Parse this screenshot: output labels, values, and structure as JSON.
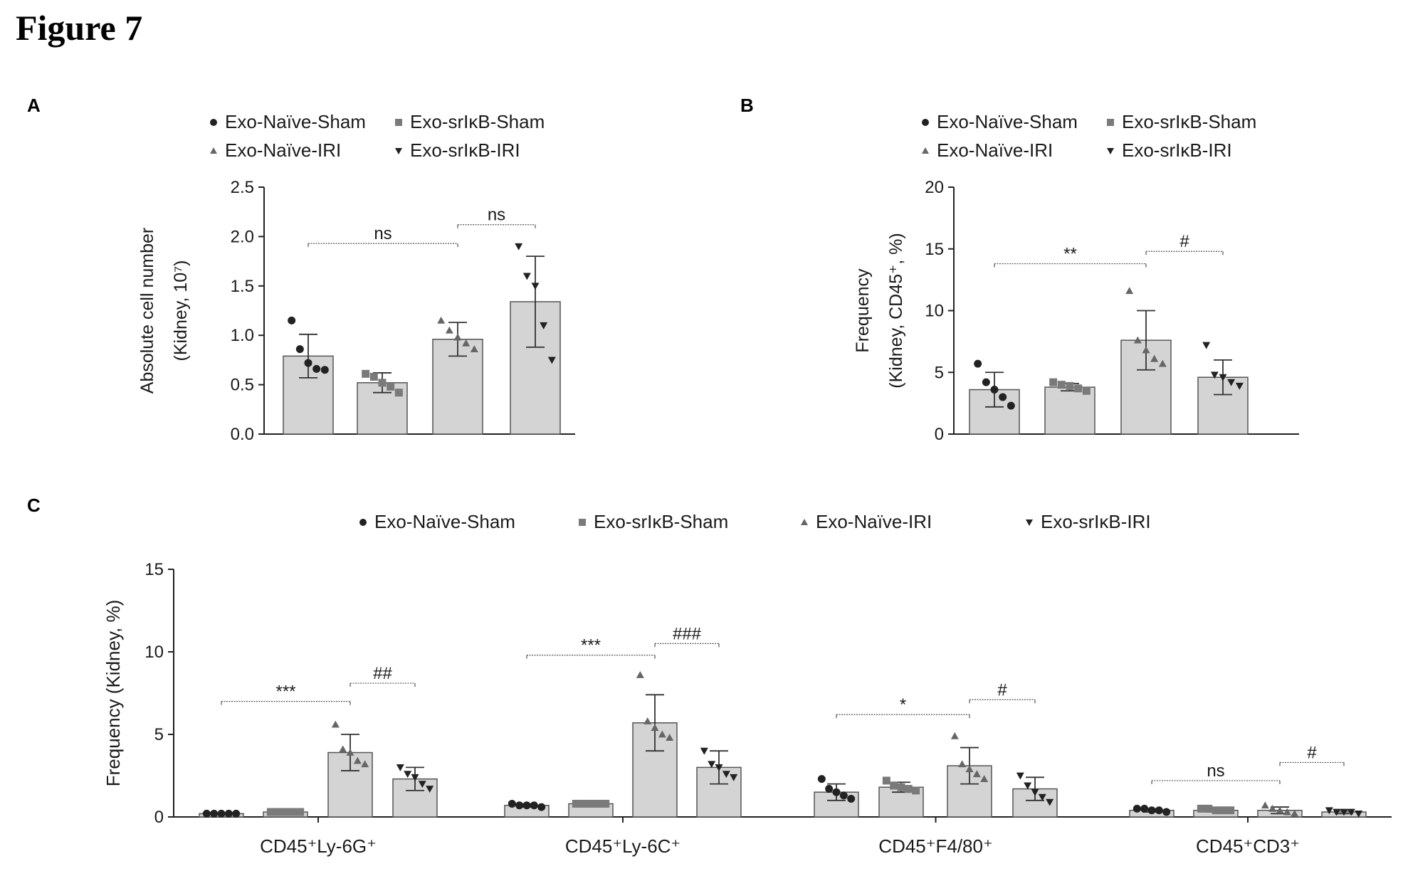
{
  "figure": {
    "title": "Figure 7"
  },
  "colors": {
    "bar_fill": "#d4d4d4",
    "bar_stroke": "#555555",
    "marker": "#222222",
    "sig_line": "#555555",
    "axis": "#222222"
  },
  "chart_data": [
    {
      "panel": "A",
      "type": "bar",
      "ylabel": "Absolute cell number",
      "ylabel2": "(Kidney, 10⁷)",
      "ylim": [
        0,
        2.5
      ],
      "yticks": [
        "0.0",
        "0.5",
        "1.0",
        "1.5",
        "2.0",
        "2.5"
      ],
      "legend": [
        "Exo-Naïve-Sham",
        "Exo-srIκB-Sham",
        "Exo-Naïve-IRI",
        "Exo-srIκB-IRI"
      ],
      "categories": [
        ""
      ],
      "series": [
        {
          "name": "Exo-Naïve-Sham",
          "marker": "circle",
          "values": [
            0.79
          ],
          "errors": [
            0.22
          ],
          "points": [
            [
              1.15,
              0.86,
              0.72,
              0.66,
              0.65
            ]
          ]
        },
        {
          "name": "Exo-srIκB-Sham",
          "marker": "square",
          "values": [
            0.52
          ],
          "errors": [
            0.1
          ],
          "points": [
            [
              0.61,
              0.58,
              0.52,
              0.48,
              0.42
            ]
          ]
        },
        {
          "name": "Exo-Naïve-IRI",
          "marker": "triangle-up",
          "values": [
            0.96
          ],
          "errors": [
            0.17
          ],
          "points": [
            [
              1.15,
              1.05,
              0.98,
              0.92,
              0.86
            ]
          ]
        },
        {
          "name": "Exo-srIκB-IRI",
          "marker": "triangle-down",
          "values": [
            1.34
          ],
          "errors": [
            0.46
          ],
          "points": [
            [
              1.9,
              1.6,
              1.5,
              1.1,
              0.75
            ]
          ]
        }
      ],
      "annotations": [
        {
          "text": "ns",
          "from": 0,
          "to": 2,
          "y": 1.93
        },
        {
          "text": "ns",
          "from": 2,
          "to": 3,
          "y": 2.12
        }
      ]
    },
    {
      "panel": "B",
      "type": "bar",
      "ylabel": "Frequency",
      "ylabel2": "(Kidney, CD45⁺, %)",
      "ylim": [
        0,
        20
      ],
      "yticks": [
        "0",
        "5",
        "10",
        "15",
        "20"
      ],
      "legend": [
        "Exo-Naïve-Sham",
        "Exo-srIκB-Sham",
        "Exo-Naïve-IRI",
        "Exo-srIκB-IRI"
      ],
      "categories": [
        ""
      ],
      "series": [
        {
          "name": "Exo-Naïve-Sham",
          "marker": "circle",
          "values": [
            3.6
          ],
          "errors": [
            1.4
          ],
          "points": [
            [
              5.7,
              4.2,
              3.6,
              3.0,
              2.3
            ]
          ]
        },
        {
          "name": "Exo-srIκB-Sham",
          "marker": "square",
          "values": [
            3.8
          ],
          "errors": [
            0.3
          ],
          "points": [
            [
              4.2,
              4.0,
              3.9,
              3.7,
              3.5
            ]
          ]
        },
        {
          "name": "Exo-Naïve-IRI",
          "marker": "triangle-up",
          "values": [
            7.6
          ],
          "errors": [
            2.4
          ],
          "points": [
            [
              11.6,
              7.6,
              6.8,
              6.1,
              5.7
            ]
          ]
        },
        {
          "name": "Exo-srIκB-IRI",
          "marker": "triangle-down",
          "values": [
            4.6
          ],
          "errors": [
            1.4
          ],
          "points": [
            [
              7.2,
              4.8,
              4.6,
              4.2,
              3.9
            ]
          ]
        }
      ],
      "annotations": [
        {
          "text": "**",
          "from": 0,
          "to": 2,
          "y": 13.8
        },
        {
          "text": "#",
          "from": 2,
          "to": 3,
          "y": 14.8
        }
      ]
    },
    {
      "panel": "C",
      "type": "bar",
      "ylabel": "Frequency (Kidney, %)",
      "ylim": [
        0,
        15
      ],
      "yticks": [
        "0",
        "5",
        "10",
        "15"
      ],
      "legend": [
        "Exo-Naïve-Sham",
        "Exo-srIκB-Sham",
        "Exo-Naïve-IRI",
        "Exo-srIκB-IRI"
      ],
      "categories": [
        "CD45⁺Ly-6G⁺",
        "CD45⁺Ly-6C⁺",
        "CD45⁺F4/80⁺",
        "CD45⁺CD3⁺"
      ],
      "series": [
        {
          "name": "Exo-Naïve-Sham",
          "marker": "circle",
          "values": [
            0.2,
            0.7,
            1.5,
            0.4
          ],
          "errors": [
            0.05,
            0.1,
            0.5,
            0.1
          ],
          "points": [
            [
              0.2,
              0.2,
              0.2,
              0.2,
              0.2
            ],
            [
              0.8,
              0.7,
              0.7,
              0.7,
              0.6
            ],
            [
              2.3,
              1.7,
              1.5,
              1.3,
              1.1
            ],
            [
              0.5,
              0.5,
              0.4,
              0.4,
              0.3
            ]
          ]
        },
        {
          "name": "Exo-srIκB-Sham",
          "marker": "square",
          "values": [
            0.3,
            0.8,
            1.8,
            0.4
          ],
          "errors": [
            0.05,
            0.1,
            0.3,
            0.1
          ],
          "points": [
            [
              0.3,
              0.3,
              0.3,
              0.3,
              0.3
            ],
            [
              0.8,
              0.8,
              0.8,
              0.8,
              0.8
            ],
            [
              2.2,
              1.9,
              1.8,
              1.7,
              1.6
            ],
            [
              0.5,
              0.5,
              0.4,
              0.4,
              0.4
            ]
          ]
        },
        {
          "name": "Exo-Naïve-IRI",
          "marker": "triangle-up",
          "values": [
            3.9,
            5.7,
            3.1,
            0.4
          ],
          "errors": [
            1.1,
            1.7,
            1.1,
            0.2
          ],
          "points": [
            [
              5.6,
              4.1,
              3.9,
              3.4,
              3.2
            ],
            [
              8.6,
              5.8,
              5.4,
              5.0,
              4.8
            ],
            [
              4.9,
              3.2,
              2.9,
              2.6,
              2.3
            ],
            [
              0.7,
              0.5,
              0.4,
              0.3,
              0.2
            ]
          ]
        },
        {
          "name": "Exo-srIκB-IRI",
          "marker": "triangle-down",
          "values": [
            2.3,
            3.0,
            1.7,
            0.3
          ],
          "errors": [
            0.7,
            1.0,
            0.7,
            0.1
          ],
          "points": [
            [
              3.0,
              2.6,
              2.4,
              2.0,
              1.7
            ],
            [
              4.0,
              3.2,
              3.0,
              2.6,
              2.4
            ],
            [
              2.5,
              1.9,
              1.5,
              1.2,
              0.9
            ],
            [
              0.4,
              0.3,
              0.3,
              0.3,
              0.2
            ]
          ]
        }
      ],
      "annotations": [
        {
          "text": "***",
          "group": 0,
          "from": 0,
          "to": 2,
          "y": 7.0
        },
        {
          "text": "##",
          "group": 0,
          "from": 2,
          "to": 3,
          "y": 8.1
        },
        {
          "text": "***",
          "group": 1,
          "from": 0,
          "to": 2,
          "y": 9.8
        },
        {
          "text": "###",
          "group": 1,
          "from": 2,
          "to": 3,
          "y": 10.5
        },
        {
          "text": "*",
          "group": 2,
          "from": 0,
          "to": 2,
          "y": 6.2
        },
        {
          "text": "#",
          "group": 2,
          "from": 2,
          "to": 3,
          "y": 7.1
        },
        {
          "text": "ns",
          "group": 3,
          "from": 0,
          "to": 2,
          "y": 2.2
        },
        {
          "text": "#",
          "group": 3,
          "from": 2,
          "to": 3,
          "y": 3.3
        }
      ]
    }
  ]
}
